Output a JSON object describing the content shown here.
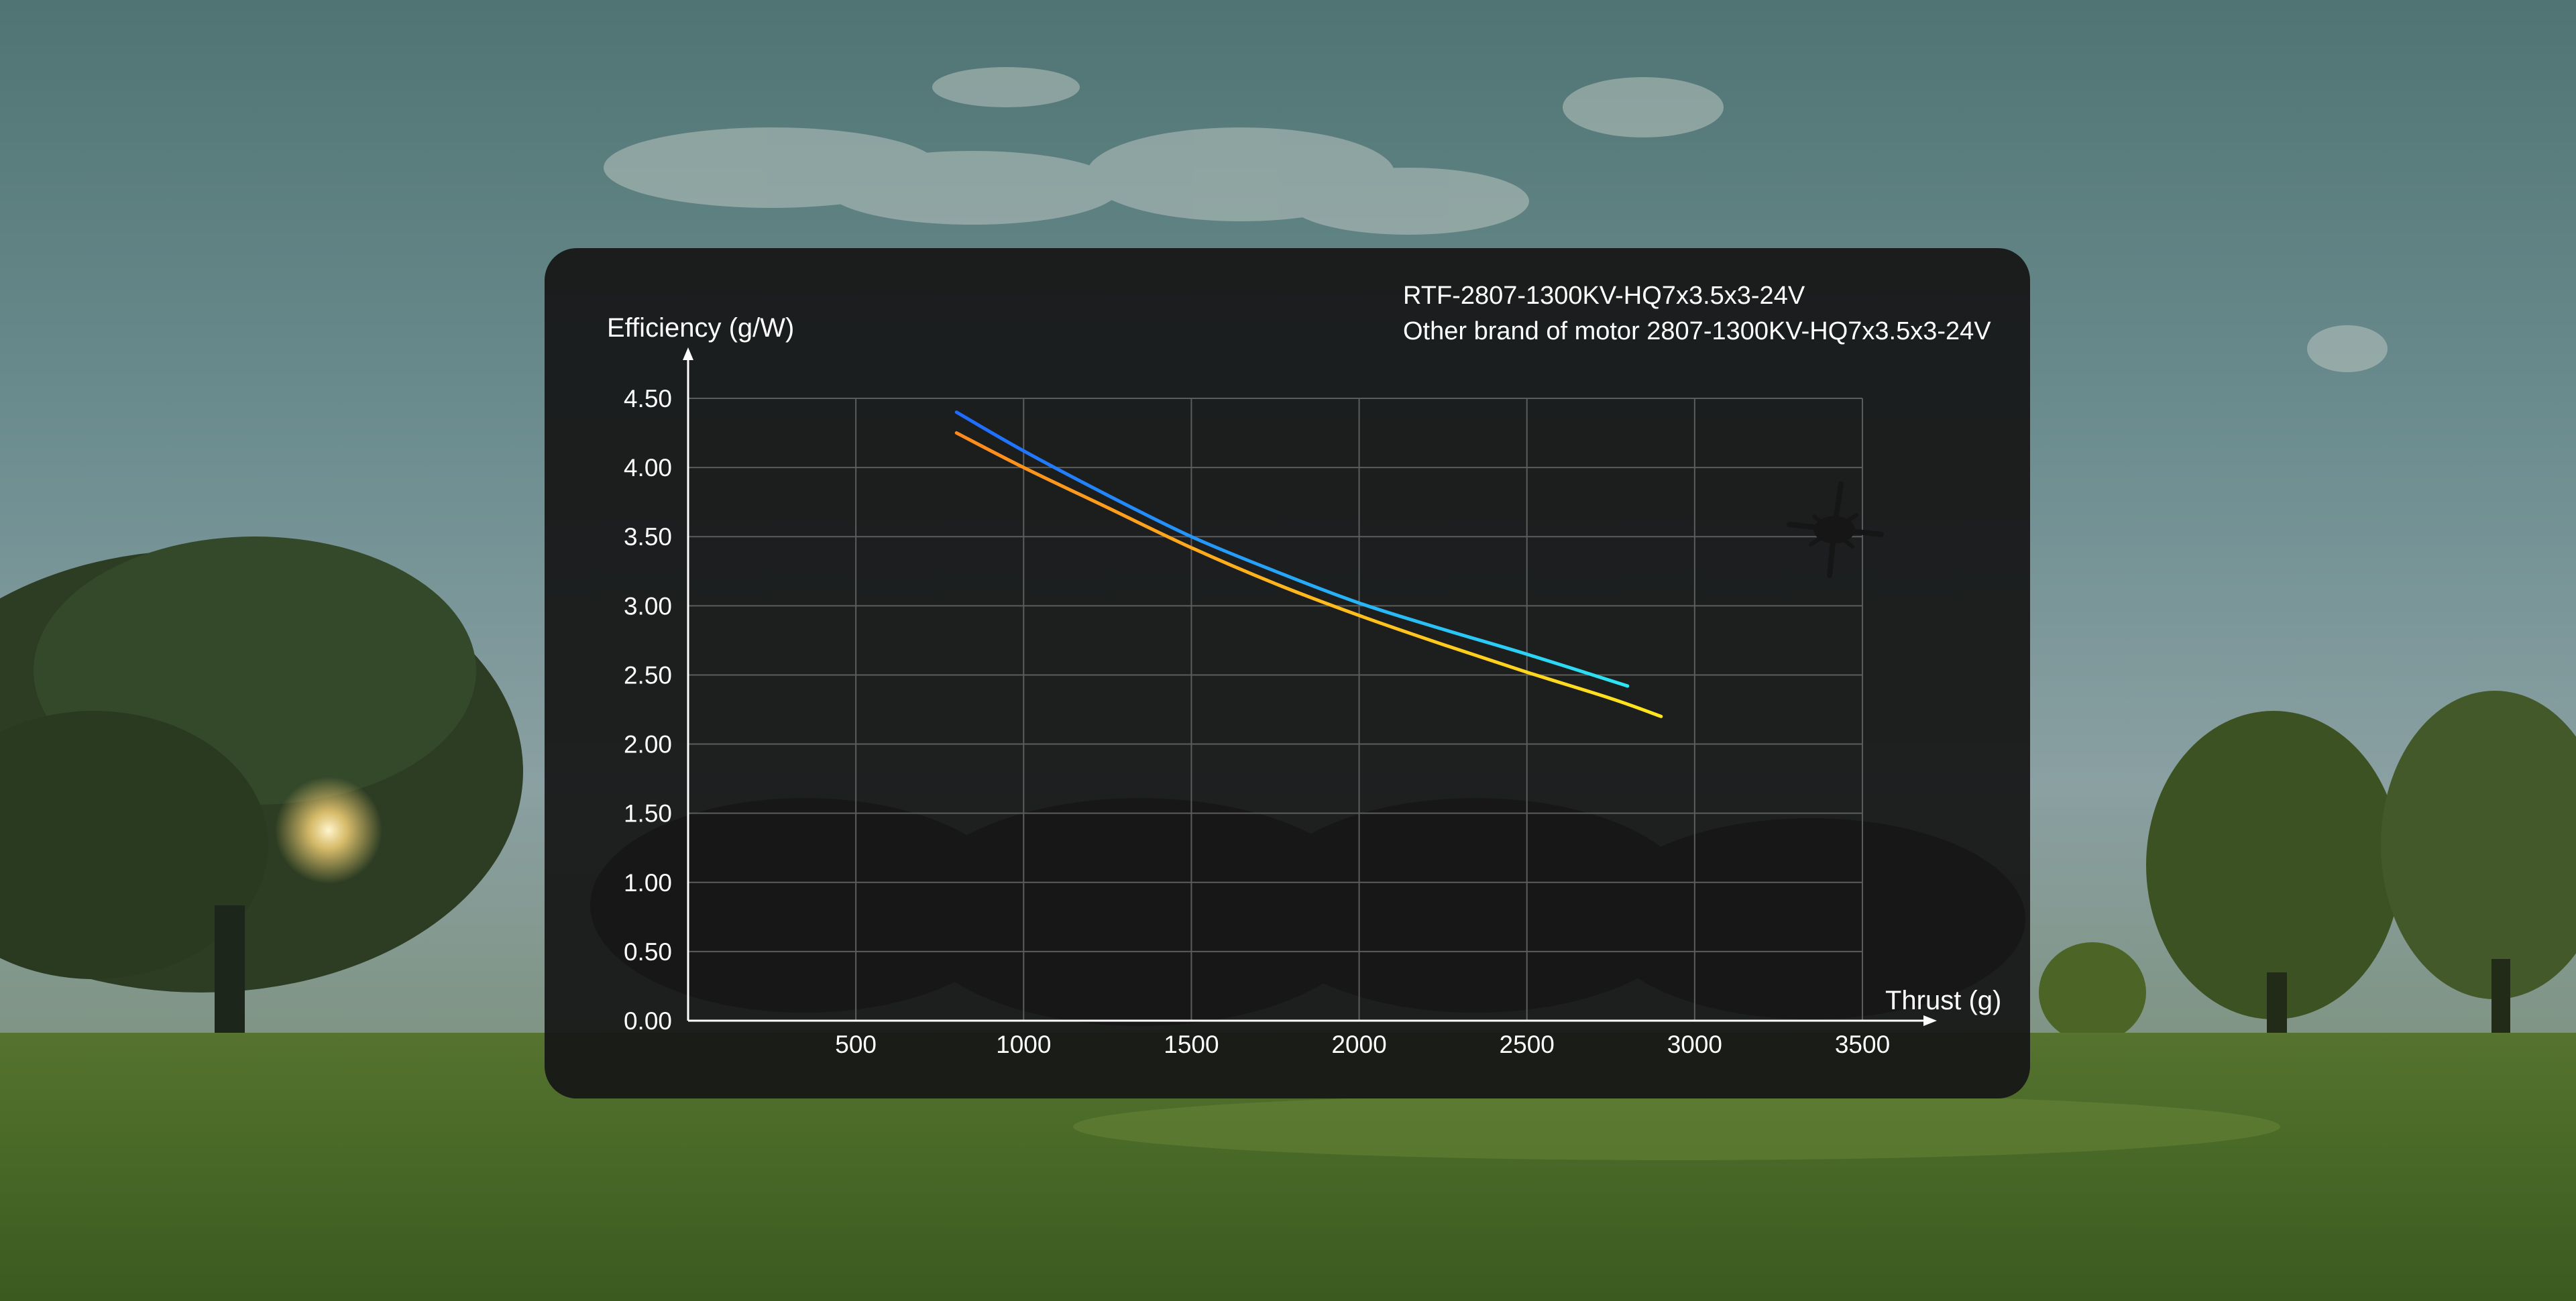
{
  "colors": {
    "series1_start": "#1f6bff",
    "series1_end": "#2ee6f2",
    "series2_start": "#ff8a1c",
    "series2_end": "#ffe81e",
    "panel": "#161616",
    "grid": "#5c5c5c"
  },
  "chart_data": {
    "type": "line",
    "xlabel": "Thrust (g)",
    "ylabel": "Efficiency (g/W)",
    "xlim": [
      0,
      3500
    ],
    "ylim": [
      0,
      4.5
    ],
    "xticks": [
      "500",
      "1000",
      "1500",
      "2000",
      "2500",
      "3000",
      "3500"
    ],
    "yticks": [
      "0.00",
      "0.50",
      "1.00",
      "1.50",
      "2.00",
      "2.50",
      "3.00",
      "3.50",
      "4.00",
      "4.50"
    ],
    "grid": true,
    "legend_position": "top-right",
    "series": [
      {
        "name": "RTF-2807-1300KV-HQ7x3.5x3-24V",
        "x": [
          800,
          1000,
          1250,
          1500,
          1750,
          2000,
          2250,
          2500,
          2800
        ],
        "y": [
          4.4,
          4.12,
          3.8,
          3.5,
          3.25,
          3.02,
          2.83,
          2.65,
          2.42
        ]
      },
      {
        "name": "Other brand of motor 2807-1300KV-HQ7x3.5x3-24V",
        "x": [
          800,
          1000,
          1250,
          1500,
          1750,
          2000,
          2250,
          2500,
          2750,
          2900
        ],
        "y": [
          4.25,
          4.0,
          3.71,
          3.42,
          3.16,
          2.93,
          2.72,
          2.52,
          2.33,
          2.2
        ]
      }
    ]
  }
}
